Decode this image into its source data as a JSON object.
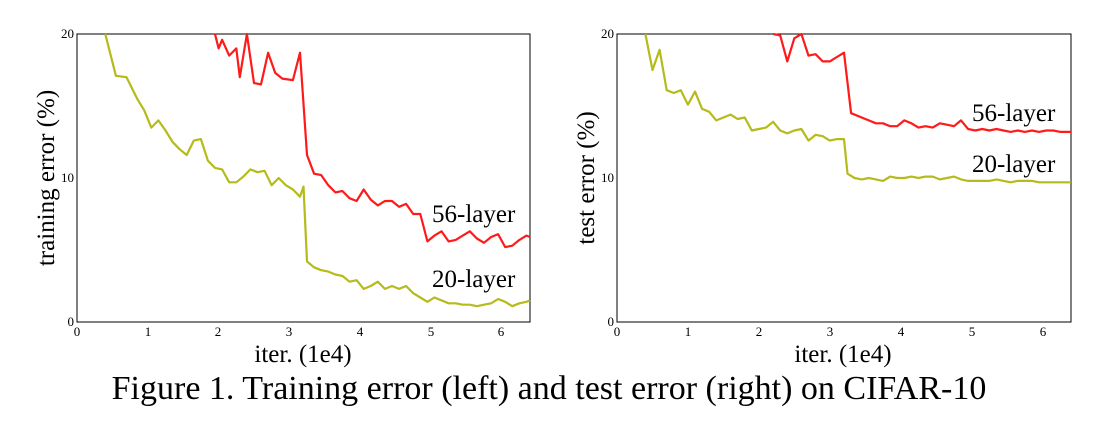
{
  "caption": "Figure 1. Training error (left) and test error (right) on CIFAR-10",
  "chart_data": [
    {
      "type": "line",
      "xlabel": "iter. (1e4)",
      "ylabel": "training error (%)",
      "xlim": [
        0,
        6.4
      ],
      "ylim": [
        0,
        20
      ],
      "xticks": [
        "0",
        "1",
        "2",
        "3",
        "4",
        "5",
        "6"
      ],
      "yticks": [
        "0",
        "10",
        "20"
      ],
      "grid": false,
      "series": [
        {
          "name": "56-layer",
          "color": "#ff1a1a",
          "x": [
            1.95,
            2.0,
            2.05,
            2.15,
            2.25,
            2.3,
            2.4,
            2.5,
            2.6,
            2.7,
            2.8,
            2.9,
            3.05,
            3.15,
            3.25,
            3.35,
            3.45,
            3.55,
            3.65,
            3.75,
            3.85,
            3.95,
            4.05,
            4.15,
            4.25,
            4.35,
            4.45,
            4.55,
            4.65,
            4.75,
            4.85,
            4.95,
            5.05,
            5.15,
            5.25,
            5.35,
            5.45,
            5.55,
            5.65,
            5.75,
            5.85,
            5.95,
            6.05,
            6.15,
            6.25,
            6.35,
            6.4
          ],
          "y": [
            20.0,
            19.0,
            19.6,
            18.5,
            19.0,
            17.0,
            20.0,
            16.6,
            16.5,
            18.7,
            17.3,
            16.9,
            16.8,
            18.7,
            11.6,
            10.3,
            10.2,
            9.5,
            9.0,
            9.1,
            8.6,
            8.4,
            9.2,
            8.5,
            8.1,
            8.4,
            8.4,
            8.0,
            8.2,
            7.5,
            7.5,
            5.6,
            6.0,
            6.3,
            5.6,
            5.7,
            6.0,
            6.3,
            5.8,
            5.5,
            5.9,
            6.1,
            5.2,
            5.3,
            5.7,
            6.0,
            5.9
          ]
        },
        {
          "name": "20-layer",
          "color": "#b5bb1a",
          "x": [
            0.4,
            0.55,
            0.7,
            0.85,
            0.95,
            1.05,
            1.15,
            1.25,
            1.35,
            1.45,
            1.55,
            1.65,
            1.75,
            1.85,
            1.95,
            2.05,
            2.15,
            2.25,
            2.35,
            2.45,
            2.55,
            2.65,
            2.75,
            2.85,
            2.95,
            3.05,
            3.15,
            3.2,
            3.25,
            3.35,
            3.45,
            3.55,
            3.65,
            3.75,
            3.85,
            3.95,
            4.05,
            4.15,
            4.25,
            4.35,
            4.45,
            4.55,
            4.65,
            4.75,
            4.85,
            4.95,
            5.05,
            5.15,
            5.25,
            5.35,
            5.45,
            5.55,
            5.65,
            5.75,
            5.85,
            5.95,
            6.05,
            6.15,
            6.25,
            6.35,
            6.4
          ],
          "y": [
            20.0,
            17.1,
            17.0,
            15.5,
            14.7,
            13.5,
            14.0,
            13.3,
            12.5,
            12.0,
            11.6,
            12.6,
            12.7,
            11.2,
            10.7,
            10.6,
            9.7,
            9.7,
            10.1,
            10.6,
            10.4,
            10.5,
            9.5,
            10.0,
            9.5,
            9.2,
            8.7,
            9.4,
            4.2,
            3.8,
            3.6,
            3.5,
            3.3,
            3.2,
            2.8,
            2.9,
            2.3,
            2.5,
            2.8,
            2.3,
            2.5,
            2.3,
            2.5,
            2.0,
            1.7,
            1.4,
            1.7,
            1.5,
            1.3,
            1.3,
            1.2,
            1.2,
            1.1,
            1.2,
            1.3,
            1.6,
            1.4,
            1.1,
            1.3,
            1.4,
            1.5
          ]
        }
      ]
    },
    {
      "type": "line",
      "xlabel": "iter. (1e4)",
      "ylabel": "test error (%)",
      "xlim": [
        0,
        6.4
      ],
      "ylim": [
        0,
        20
      ],
      "xticks": [
        "0",
        "1",
        "2",
        "3",
        "4",
        "5",
        "6"
      ],
      "yticks": [
        "0",
        "10",
        "20"
      ],
      "grid": false,
      "series": [
        {
          "name": "56-layer",
          "color": "#ff1a1a",
          "x": [
            2.2,
            2.3,
            2.4,
            2.5,
            2.6,
            2.7,
            2.8,
            2.9,
            3.0,
            3.1,
            3.2,
            3.3,
            3.45,
            3.55,
            3.65,
            3.75,
            3.85,
            3.95,
            4.05,
            4.15,
            4.25,
            4.35,
            4.45,
            4.55,
            4.65,
            4.75,
            4.85,
            4.95,
            5.05,
            5.15,
            5.25,
            5.35,
            5.45,
            5.55,
            5.65,
            5.75,
            5.85,
            5.95,
            6.05,
            6.15,
            6.25,
            6.35,
            6.4
          ],
          "y": [
            20.0,
            19.9,
            18.1,
            19.7,
            20.0,
            18.5,
            18.6,
            18.1,
            18.1,
            18.4,
            18.7,
            14.5,
            14.2,
            14.0,
            13.8,
            13.8,
            13.6,
            13.6,
            14.0,
            13.8,
            13.5,
            13.6,
            13.5,
            13.8,
            13.7,
            13.6,
            14.0,
            13.4,
            13.3,
            13.4,
            13.3,
            13.4,
            13.3,
            13.2,
            13.3,
            13.2,
            13.3,
            13.2,
            13.3,
            13.3,
            13.2,
            13.2,
            13.2
          ]
        },
        {
          "name": "20-layer",
          "color": "#b5bb1a",
          "x": [
            0.4,
            0.5,
            0.6,
            0.7,
            0.8,
            0.9,
            1.0,
            1.1,
            1.2,
            1.3,
            1.4,
            1.5,
            1.6,
            1.7,
            1.8,
            1.9,
            2.0,
            2.1,
            2.2,
            2.3,
            2.4,
            2.5,
            2.6,
            2.7,
            2.8,
            2.9,
            3.0,
            3.1,
            3.2,
            3.25,
            3.35,
            3.45,
            3.55,
            3.65,
            3.75,
            3.85,
            3.95,
            4.05,
            4.15,
            4.25,
            4.35,
            4.45,
            4.55,
            4.65,
            4.75,
            4.85,
            4.95,
            5.05,
            5.15,
            5.25,
            5.35,
            5.45,
            5.55,
            5.65,
            5.75,
            5.85,
            5.95,
            6.05,
            6.15,
            6.25,
            6.35,
            6.4
          ],
          "y": [
            20.0,
            17.5,
            18.9,
            16.1,
            15.9,
            16.1,
            15.1,
            16.0,
            14.8,
            14.6,
            14.0,
            14.2,
            14.4,
            14.1,
            14.2,
            13.3,
            13.4,
            13.5,
            13.9,
            13.3,
            13.1,
            13.3,
            13.4,
            12.6,
            13.0,
            12.9,
            12.6,
            12.7,
            12.7,
            10.3,
            10.0,
            9.9,
            10.0,
            9.9,
            9.8,
            10.1,
            10.0,
            10.0,
            10.1,
            10.0,
            10.1,
            10.1,
            9.9,
            10.0,
            10.1,
            9.9,
            9.8,
            9.8,
            9.8,
            9.8,
            9.9,
            9.8,
            9.7,
            9.8,
            9.8,
            9.8,
            9.7,
            9.7,
            9.7,
            9.7,
            9.7,
            9.7
          ]
        }
      ]
    }
  ]
}
